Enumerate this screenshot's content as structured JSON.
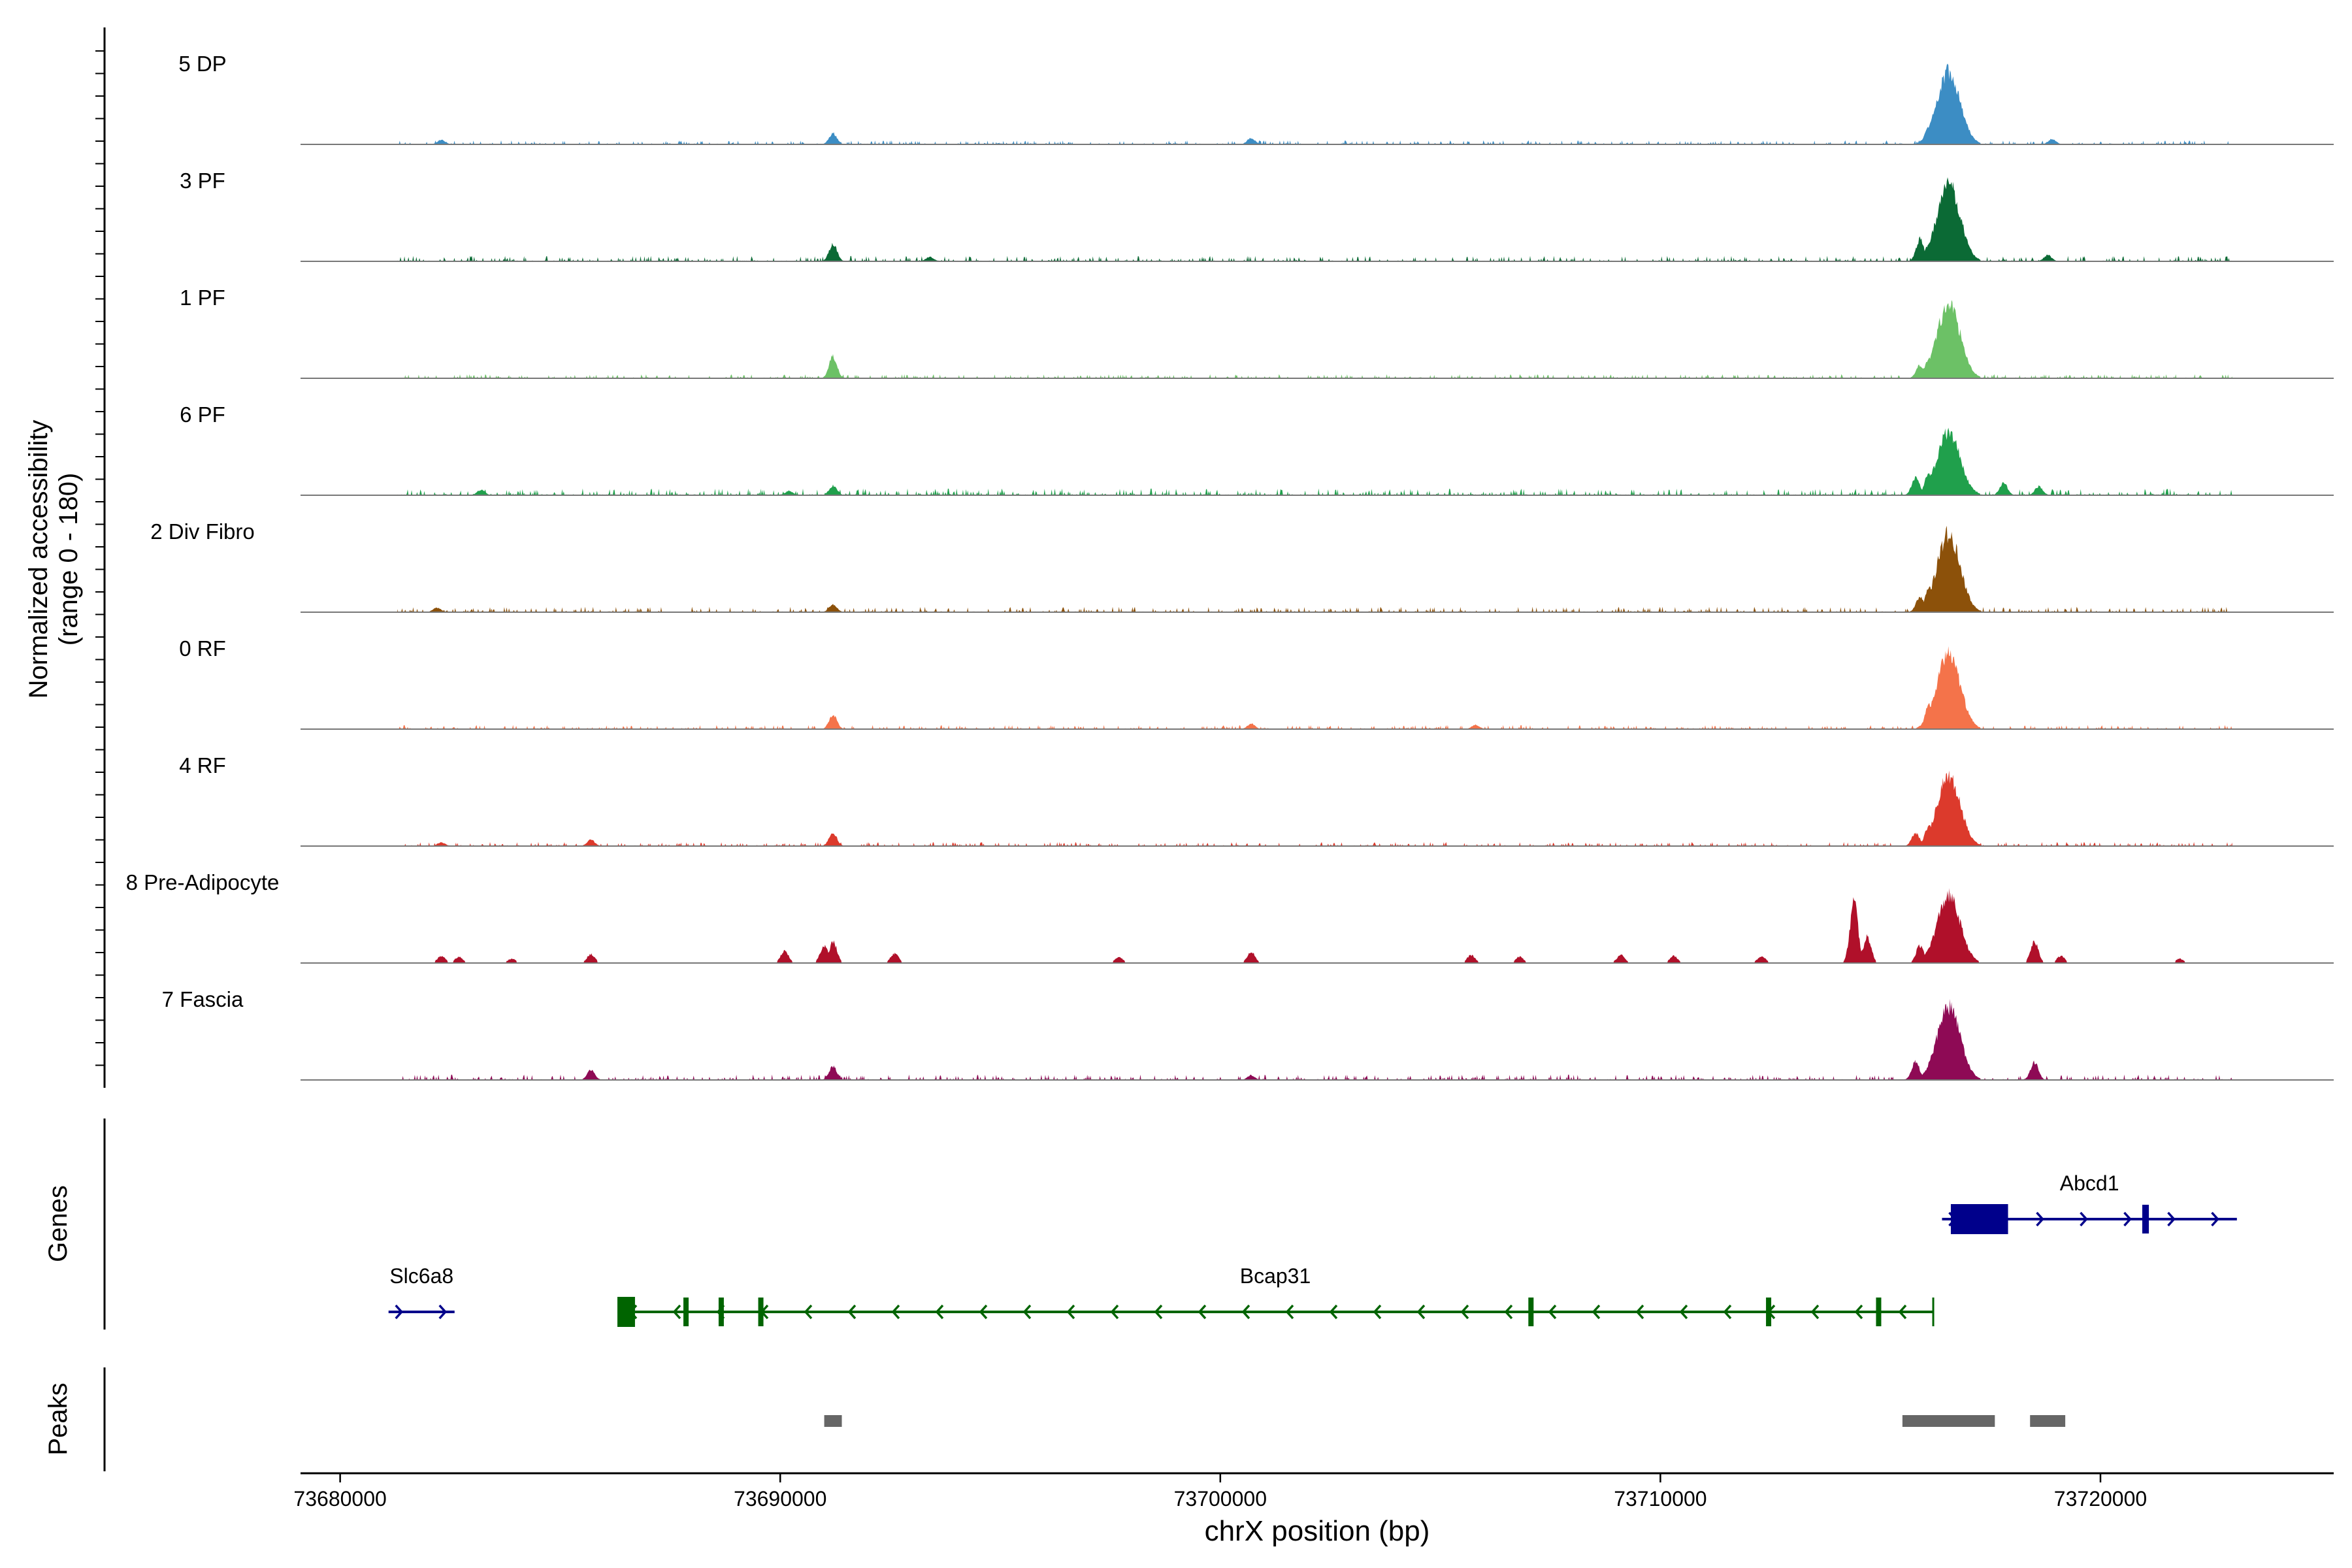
{
  "chart_data": {
    "type": "area",
    "title": "",
    "ylabel_line1": "Normalized accessibility",
    "ylabel_line2": "(range 0 - 180)",
    "xlabel": "chrX position (bp)",
    "xlim": [
      73679100,
      73725300
    ],
    "ylim": [
      0,
      180
    ],
    "x_ticks": [
      73680000,
      73690000,
      73700000,
      73710000,
      73720000
    ],
    "x_tick_labels": [
      "73680000",
      "73690000",
      "73700000",
      "73710000",
      "73720000"
    ],
    "range_start": 73681300,
    "range_end": 73723000,
    "main_peak_center": 73716550,
    "series": [
      {
        "name": "5 DP",
        "color": "#3C8DC4",
        "peak": 165,
        "background": 3,
        "small_peaks": [
          [
            73691200,
            25
          ],
          [
            73700700,
            14
          ],
          [
            73682300,
            10
          ],
          [
            73716100,
            40
          ],
          [
            73718900,
            12
          ]
        ]
      },
      {
        "name": "3 PF",
        "color": "#0B6A35",
        "peak": 172,
        "background": 4,
        "small_peaks": [
          [
            73691200,
            40
          ],
          [
            73693400,
            10
          ],
          [
            73715900,
            50
          ],
          [
            73716100,
            38
          ],
          [
            73718800,
            14
          ]
        ]
      },
      {
        "name": "1 PF",
        "color": "#6CC166",
        "peak": 165,
        "background": 3,
        "small_peaks": [
          [
            73691200,
            50
          ],
          [
            73716100,
            45
          ],
          [
            73715900,
            30
          ]
        ]
      },
      {
        "name": "6 PF",
        "color": "#20A04C",
        "peak": 140,
        "background": 5,
        "small_peaks": [
          [
            73691200,
            22
          ],
          [
            73683200,
            12
          ],
          [
            73690200,
            10
          ],
          [
            73715800,
            40
          ],
          [
            73716100,
            50
          ],
          [
            73717800,
            28
          ],
          [
            73718600,
            20
          ]
        ]
      },
      {
        "name": "2 Div Fibro",
        "color": "#8C510A",
        "peak": 175,
        "background": 4,
        "small_peaks": [
          [
            73691200,
            18
          ],
          [
            73682200,
            10
          ],
          [
            73715900,
            35
          ],
          [
            73716100,
            55
          ]
        ]
      },
      {
        "name": "0 RF",
        "color": "#F4734A",
        "peak": 168,
        "background": 3,
        "small_peaks": [
          [
            73691200,
            32
          ],
          [
            73700700,
            12
          ],
          [
            73705800,
            10
          ],
          [
            73716100,
            55
          ]
        ]
      },
      {
        "name": "4 RF",
        "color": "#DC3A2C",
        "peak": 155,
        "background": 3,
        "small_peaks": [
          [
            73691200,
            30
          ],
          [
            73685700,
            14
          ],
          [
            73682300,
            8
          ],
          [
            73716100,
            45
          ],
          [
            73715800,
            30
          ]
        ]
      },
      {
        "name": "8 Pre-Adipocyte",
        "color": "#B0102A",
        "peak": 150,
        "background": 0,
        "small_peaks": [
          [
            73682300,
            16
          ],
          [
            73682700,
            14
          ],
          [
            73683900,
            10
          ],
          [
            73685700,
            20
          ],
          [
            73690100,
            28
          ],
          [
            73691000,
            40
          ],
          [
            73691200,
            48
          ],
          [
            73692600,
            22
          ],
          [
            73697700,
            14
          ],
          [
            73700700,
            26
          ],
          [
            73705700,
            18
          ],
          [
            73706800,
            14
          ],
          [
            73709100,
            18
          ],
          [
            73710300,
            16
          ],
          [
            73712300,
            16
          ],
          [
            73714400,
            140
          ],
          [
            73714700,
            60
          ],
          [
            73715900,
            40
          ],
          [
            73718500,
            48
          ],
          [
            73719100,
            16
          ],
          [
            73721800,
            10
          ]
        ]
      },
      {
        "name": "7 Fascia",
        "color": "#8E0A55",
        "peak": 165,
        "background": 4,
        "small_peaks": [
          [
            73691200,
            30
          ],
          [
            73685700,
            22
          ],
          [
            73700700,
            10
          ],
          [
            73715800,
            42
          ],
          [
            73718500,
            40
          ]
        ]
      }
    ],
    "genes_label": "Genes",
    "genes": [
      {
        "name": "Slc6a8",
        "start": 73681100,
        "end": 73682600,
        "strand": "+",
        "color": "#00008B",
        "exons": []
      },
      {
        "name": "Bcap31",
        "start": 73686300,
        "end": 73716200,
        "strand": "-",
        "color": "#006400",
        "exons": [
          [
            73686300,
            73686700
          ],
          [
            73687800,
            73687900
          ],
          [
            73688600,
            73688700
          ],
          [
            73689500,
            73689600
          ],
          [
            73707000,
            73707100
          ],
          [
            73712400,
            73712500
          ],
          [
            73714900,
            73715000
          ]
        ]
      },
      {
        "name": "Abcd1",
        "start": 73716400,
        "end": 73723100,
        "strand": "+",
        "color": "#00008B",
        "exons": [
          [
            73716600,
            73717900
          ],
          [
            73720950,
            73721100
          ]
        ]
      }
    ],
    "peaks_label": "Peaks",
    "peaks": [
      [
        73691000,
        73691400
      ],
      [
        73715500,
        73717600
      ],
      [
        73718400,
        73719200
      ]
    ],
    "peak_color": "#666666"
  }
}
